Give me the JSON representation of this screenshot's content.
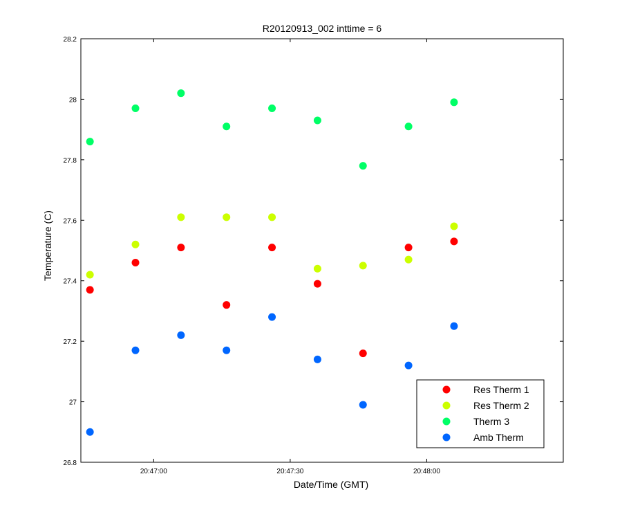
{
  "chart_data": {
    "type": "scatter",
    "title": "R20120913_002 inttime = 6",
    "xlabel": "Date/Time (GMT)",
    "ylabel": "Temperature (C)",
    "xlim": [
      "20:46:44",
      "20:48:30"
    ],
    "ylim": [
      26.8,
      28.2
    ],
    "x_ticks": [
      {
        "time": "20:47:00",
        "label": "20:47:00"
      },
      {
        "time": "20:47:30",
        "label": "20:47:30"
      },
      {
        "time": "20:48:00",
        "label": "20:48:00"
      }
    ],
    "y_ticks": [
      {
        "value": 26.8,
        "label": "26.8"
      },
      {
        "value": 27.0,
        "label": "27"
      },
      {
        "value": 27.2,
        "label": "27.2"
      },
      {
        "value": 27.4,
        "label": "27.4"
      },
      {
        "value": 27.6,
        "label": "27.6"
      },
      {
        "value": 27.8,
        "label": "27.8"
      },
      {
        "value": 28.0,
        "label": "28"
      },
      {
        "value": 28.2,
        "label": "28.2"
      }
    ],
    "x": [
      "20:46:46",
      "20:46:56",
      "20:47:06",
      "20:47:16",
      "20:47:26",
      "20:47:36",
      "20:47:46",
      "20:47:56",
      "20:48:06"
    ],
    "series": [
      {
        "name": "Res Therm 1",
        "color": "#ff0000",
        "values": [
          27.37,
          27.46,
          27.51,
          27.32,
          27.51,
          27.39,
          27.16,
          27.51,
          27.53
        ]
      },
      {
        "name": "Res Therm 2",
        "color": "#ccff00",
        "values": [
          27.42,
          27.52,
          27.61,
          27.61,
          27.61,
          27.44,
          27.45,
          27.47,
          27.58
        ]
      },
      {
        "name": "Therm 3",
        "color": "#00ff66",
        "values": [
          27.86,
          27.97,
          28.02,
          27.91,
          27.97,
          27.93,
          27.78,
          27.91,
          27.99
        ]
      },
      {
        "name": "Amb Therm",
        "color": "#0066ff",
        "values": [
          26.9,
          27.17,
          27.22,
          27.17,
          27.28,
          27.14,
          26.99,
          27.12,
          27.25
        ]
      }
    ],
    "legend": {
      "position": "bottom-right"
    },
    "grid": false
  }
}
